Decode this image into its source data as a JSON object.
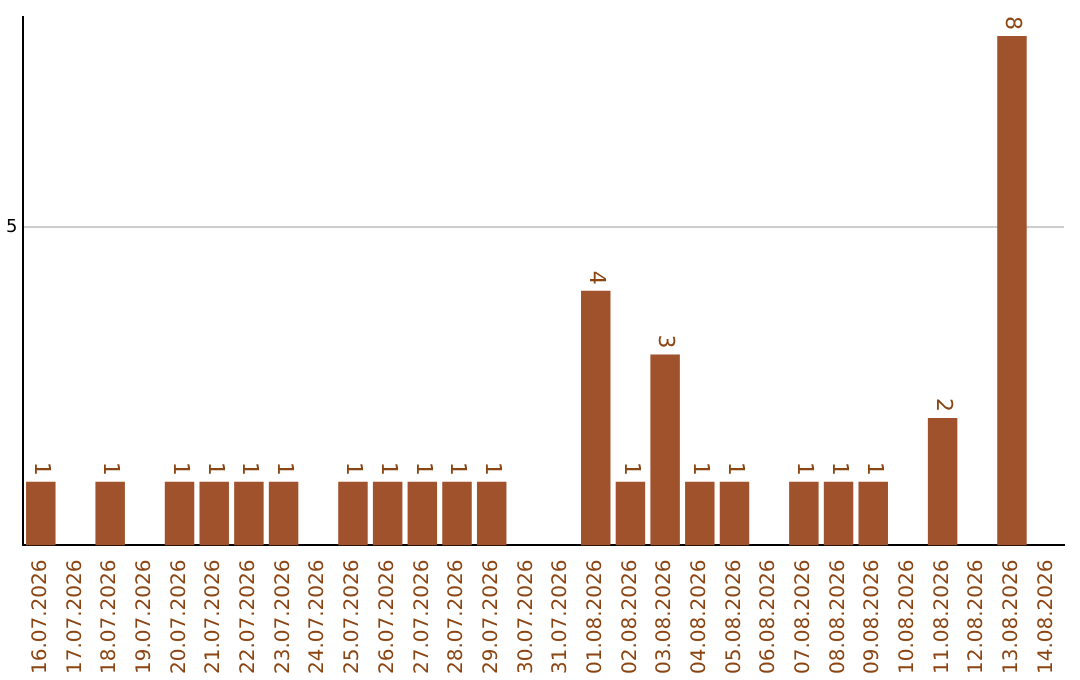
{
  "chart_data": {
    "type": "bar",
    "categories": [
      "16.07.2026",
      "17.07.2026",
      "18.07.2026",
      "19.07.2026",
      "20.07.2026",
      "21.07.2026",
      "22.07.2026",
      "23.07.2026",
      "24.07.2026",
      "25.07.2026",
      "26.07.2026",
      "27.07.2026",
      "28.07.2026",
      "29.07.2026",
      "30.07.2026",
      "31.07.2026",
      "01.08.2026",
      "02.08.2026",
      "03.08.2026",
      "04.08.2026",
      "05.08.2026",
      "06.08.2026",
      "07.08.2026",
      "08.08.2026",
      "09.08.2026",
      "10.08.2026",
      "11.08.2026",
      "12.08.2026",
      "13.08.2026",
      "14.08.2026"
    ],
    "values": [
      1,
      0,
      1,
      0,
      1,
      1,
      1,
      1,
      0,
      1,
      1,
      1,
      1,
      1,
      0,
      0,
      4,
      1,
      3,
      1,
      1,
      0,
      1,
      1,
      1,
      0,
      2,
      0,
      8,
      0
    ],
    "value_labels": [
      "1",
      null,
      "1",
      null,
      "1",
      "1",
      "1",
      "1",
      null,
      "1",
      "1",
      "1",
      "1",
      "1",
      null,
      null,
      "4",
      "1",
      "3",
      "1",
      "1",
      null,
      "1",
      "1",
      "1",
      null,
      "2",
      null,
      "8",
      null
    ],
    "color": "#a0522d",
    "ylim": [
      0,
      8.3
    ],
    "yticks": [
      5
    ],
    "grid": "y",
    "legend": false
  }
}
